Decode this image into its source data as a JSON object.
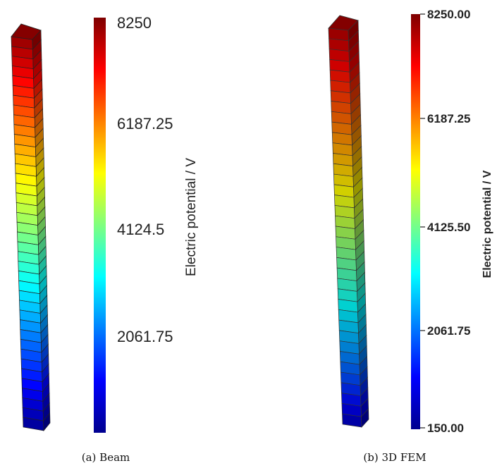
{
  "panels": [
    {
      "caption": "(a) Beam",
      "colorbar_title": "Electric potential / V",
      "ticks": [
        "8250",
        "6187.25",
        "4124.5",
        "2061.75"
      ],
      "beam_coloring": "high at top (red), low at bottom (blue), linear gradient"
    },
    {
      "caption": "(b) 3D FEM",
      "colorbar_title": "Electric potential / V",
      "ticks": [
        "8250.00",
        "6187.25",
        "4125.50",
        "2061.75",
        "150.00"
      ],
      "beam_coloring": "high at top (red), low at bottom (blue), nonlinear gradient"
    }
  ],
  "colormap": "jet",
  "range": [
    150,
    8250
  ]
}
